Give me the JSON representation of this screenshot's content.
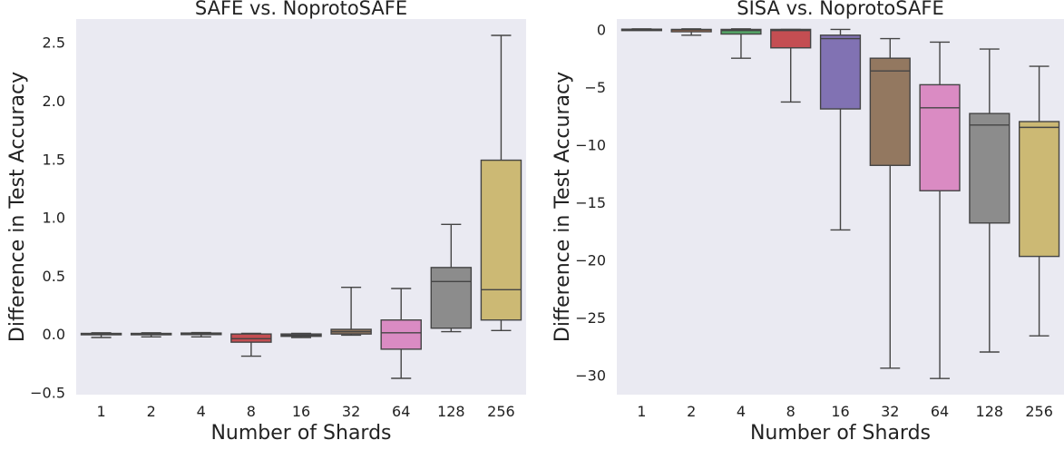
{
  "chart_data": [
    {
      "type": "box",
      "title": "SAFE vs. NoprotoSAFE",
      "xlabel": "Number of Shards",
      "ylabel": "Difference in Test Accuracy",
      "categories": [
        "1",
        "2",
        "4",
        "8",
        "16",
        "32",
        "64",
        "128",
        "256"
      ],
      "ylim": [
        -0.52,
        2.7
      ],
      "yticks": [
        -0.5,
        0.0,
        0.5,
        1.0,
        1.5,
        2.0,
        2.5
      ],
      "ytick_labels": [
        "−0.5",
        "0.0",
        "0.5",
        "1.0",
        "1.5",
        "2.0",
        "2.5"
      ],
      "grid": false,
      "background": "#eaeaf2",
      "boxes": [
        {
          "category": "1",
          "whisker_low": -0.03,
          "q1": -0.005,
          "median": 0.0,
          "q3": 0.005,
          "whisker_high": 0.01,
          "color": "#597dbf"
        },
        {
          "category": "2",
          "whisker_low": -0.025,
          "q1": -0.005,
          "median": 0.0,
          "q3": 0.005,
          "whisker_high": 0.01,
          "color": "#dd8452"
        },
        {
          "category": "4",
          "whisker_low": -0.025,
          "q1": -0.005,
          "median": 0.0,
          "q3": 0.008,
          "whisker_high": 0.012,
          "color": "#55a868"
        },
        {
          "category": "8",
          "whisker_low": -0.19,
          "q1": -0.07,
          "median": -0.04,
          "q3": 0.0,
          "whisker_high": 0.005,
          "color": "#c44e52"
        },
        {
          "category": "16",
          "whisker_low": -0.03,
          "q1": -0.02,
          "median": -0.01,
          "q3": 0.0,
          "whisker_high": 0.005,
          "color": "#8172b3"
        },
        {
          "category": "32",
          "whisker_low": -0.01,
          "q1": 0.0,
          "median": 0.02,
          "q3": 0.04,
          "whisker_high": 0.4,
          "color": "#937860"
        },
        {
          "category": "64",
          "whisker_low": -0.38,
          "q1": -0.13,
          "median": 0.01,
          "q3": 0.12,
          "whisker_high": 0.39,
          "color": "#da8bc3"
        },
        {
          "category": "128",
          "whisker_low": 0.02,
          "q1": 0.05,
          "median": 0.45,
          "q3": 0.57,
          "whisker_high": 0.94,
          "color": "#8c8c8c"
        },
        {
          "category": "256",
          "whisker_low": 0.03,
          "q1": 0.12,
          "median": 0.38,
          "q3": 1.49,
          "whisker_high": 2.56,
          "color": "#ccb974"
        }
      ]
    },
    {
      "type": "box",
      "title": "SISA vs. NoprotoSAFE",
      "xlabel": "Number of Shards",
      "ylabel": "Difference in Test Accuracy",
      "categories": [
        "1",
        "2",
        "4",
        "8",
        "16",
        "32",
        "64",
        "128",
        "256"
      ],
      "ylim": [
        -31.7,
        0.9
      ],
      "yticks": [
        0,
        -5,
        -10,
        -15,
        -20,
        -25,
        -30
      ],
      "ytick_labels": [
        "0",
        "−5",
        "−10",
        "−15",
        "−20",
        "−25",
        "−30"
      ],
      "grid": false,
      "background": "#eaeaf2",
      "boxes": [
        {
          "category": "1",
          "whisker_low": -0.05,
          "q1": -0.02,
          "median": 0.0,
          "q3": 0.02,
          "whisker_high": 0.05,
          "color": "#597dbf"
        },
        {
          "category": "2",
          "whisker_low": -0.5,
          "q1": -0.2,
          "median": -0.05,
          "q3": 0.0,
          "whisker_high": 0.05,
          "color": "#dd8452"
        },
        {
          "category": "4",
          "whisker_low": -2.5,
          "q1": -0.4,
          "median": -0.1,
          "q3": 0.0,
          "whisker_high": 0.05,
          "color": "#55a868"
        },
        {
          "category": "8",
          "whisker_low": -6.3,
          "q1": -1.6,
          "median": -0.1,
          "q3": 0.0,
          "whisker_high": 0.0,
          "color": "#c44e52"
        },
        {
          "category": "16",
          "whisker_low": -17.4,
          "q1": -6.9,
          "median": -0.8,
          "q3": -0.5,
          "whisker_high": 0.0,
          "color": "#8172b3"
        },
        {
          "category": "32",
          "whisker_low": -29.4,
          "q1": -11.8,
          "median": -3.6,
          "q3": -2.5,
          "whisker_high": -0.8,
          "color": "#937860"
        },
        {
          "category": "64",
          "whisker_low": -30.3,
          "q1": -14.0,
          "median": -6.8,
          "q3": -4.8,
          "whisker_high": -1.1,
          "color": "#da8bc3"
        },
        {
          "category": "128",
          "whisker_low": -28.0,
          "q1": -16.8,
          "median": -8.3,
          "q3": -7.3,
          "whisker_high": -1.7,
          "color": "#8c8c8c"
        },
        {
          "category": "256",
          "whisker_low": -26.6,
          "q1": -19.7,
          "median": -8.5,
          "q3": -8.0,
          "whisker_high": -3.2,
          "color": "#ccb974"
        }
      ]
    }
  ]
}
